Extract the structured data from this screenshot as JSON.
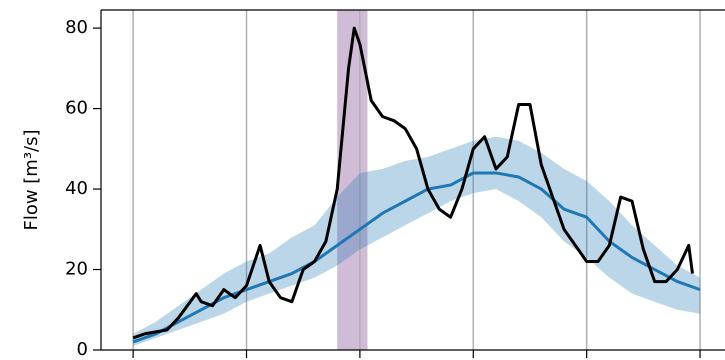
{
  "chart_data": {
    "type": "line",
    "ylabel": "Flow [m³/s]",
    "xlim": [
      -8.5,
      156.6
    ],
    "xticks": [
      0,
      30,
      60,
      90,
      120,
      150
    ],
    "ylim": [
      0,
      84.5
    ],
    "yticks": [
      0,
      20,
      40,
      60,
      80
    ],
    "grid": "x",
    "span": {
      "x": [
        54,
        62
      ],
      "color": "#7b3f8c"
    },
    "band": {
      "color": "#1f77b4",
      "x": [
        0,
        6,
        12,
        18,
        24,
        30,
        36,
        42,
        48,
        54,
        60,
        66,
        72,
        78,
        84,
        90,
        96,
        102,
        108,
        114,
        120,
        126,
        132,
        138,
        144,
        150
      ],
      "low": [
        1,
        3,
        5,
        7,
        9,
        12,
        14,
        16,
        18,
        21,
        25,
        28,
        31,
        34,
        37,
        39,
        40,
        37,
        33,
        27,
        23,
        18,
        14,
        12,
        10,
        9
      ],
      "high": [
        4,
        7,
        11,
        15,
        19,
        22,
        24,
        28,
        31,
        38,
        44,
        45,
        47,
        48,
        50,
        52,
        53,
        52,
        49,
        45,
        42,
        37,
        31,
        26,
        21,
        18
      ]
    },
    "series": [
      {
        "color": "#1f77b4",
        "x": [
          0,
          6,
          12,
          18,
          24,
          30,
          36,
          42,
          48,
          54,
          60,
          66,
          72,
          78,
          84,
          90,
          96,
          102,
          108,
          114,
          120,
          126,
          132,
          138,
          144,
          150
        ],
        "values": [
          2,
          4,
          7,
          10,
          13,
          15,
          17,
          19,
          22,
          26,
          30,
          34,
          37,
          40,
          41,
          44,
          44,
          43,
          40,
          35,
          33,
          27,
          23,
          20,
          17,
          15
        ]
      },
      {
        "color": "#000000",
        "x": [
          0,
          3,
          6,
          9,
          12,
          16.7,
          18,
          21,
          24,
          27,
          30,
          33.6,
          36,
          39,
          42,
          45,
          48,
          51,
          54,
          57,
          58.5,
          60,
          63,
          66,
          69,
          72,
          75,
          78,
          81,
          84,
          87,
          90,
          93,
          96,
          99,
          102,
          105,
          108,
          111,
          114,
          117,
          120,
          123,
          126,
          129,
          132,
          135,
          138,
          141,
          144,
          147,
          148
        ],
        "values": [
          3,
          4,
          4.5,
          5,
          8,
          14,
          12,
          11,
          15,
          13,
          16,
          26,
          17,
          13,
          12,
          20,
          22,
          27,
          40,
          70,
          80,
          76,
          62,
          58,
          57,
          55,
          50,
          40,
          35,
          33,
          40,
          50,
          53,
          45,
          48,
          61,
          61,
          46,
          38,
          30,
          26,
          22,
          22,
          26,
          38,
          37,
          25,
          17,
          17,
          20,
          26,
          19
        ]
      }
    ]
  }
}
